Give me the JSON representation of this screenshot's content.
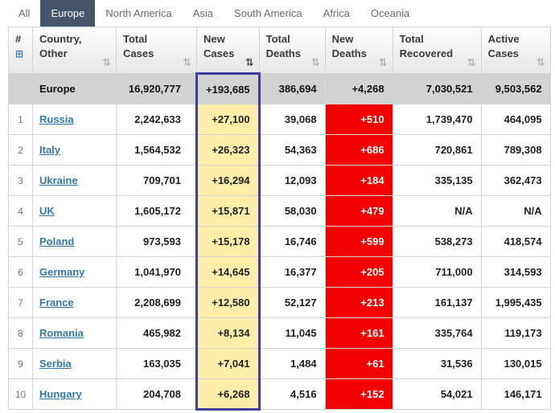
{
  "tabs": [
    {
      "label": "All",
      "active": false
    },
    {
      "label": "Europe",
      "active": true
    },
    {
      "label": "North America",
      "active": false
    },
    {
      "label": "Asia",
      "active": false
    },
    {
      "label": "South America",
      "active": false
    },
    {
      "label": "Africa",
      "active": false
    },
    {
      "label": "Oceania",
      "active": false
    }
  ],
  "icons": {
    "sort": "⇅",
    "grid": "⊞"
  },
  "colors": {
    "tab-active-bg": "#44566b",
    "link-color": "#3379a9",
    "new-cases-bg": "#ffeeaa",
    "new-deaths-bg": "#f20000",
    "highlight-border": "#3b3f99",
    "totals-row-bg": "#d2d2d2"
  },
  "table": {
    "columns": [
      {
        "id": "rank",
        "lines": [
          "#"
        ],
        "sortable": false
      },
      {
        "id": "country",
        "lines": [
          "Country,",
          "Other"
        ],
        "sortable": true
      },
      {
        "id": "total_cases",
        "lines": [
          "Total",
          "Cases"
        ],
        "sortable": true
      },
      {
        "id": "new_cases",
        "lines": [
          "New",
          "Cases"
        ],
        "sortable": true,
        "sort_active": true
      },
      {
        "id": "total_deaths",
        "lines": [
          "Total",
          "Deaths"
        ],
        "sortable": true
      },
      {
        "id": "new_deaths",
        "lines": [
          "New",
          "Deaths"
        ],
        "sortable": true
      },
      {
        "id": "total_recovered",
        "lines": [
          "Total",
          "Recovered"
        ],
        "sortable": true
      },
      {
        "id": "active_cases",
        "lines": [
          "Active",
          "Cases"
        ],
        "sortable": true
      }
    ],
    "totals_row": {
      "rank": "",
      "country": "Europe",
      "total_cases": "16,920,777",
      "new_cases": "+193,685",
      "total_deaths": "386,694",
      "new_deaths": "+4,268",
      "total_recovered": "7,030,521",
      "active_cases": "9,503,562"
    },
    "rows": [
      {
        "rank": "1",
        "country": "Russia",
        "total_cases": "2,242,633",
        "new_cases": "+27,100",
        "total_deaths": "39,068",
        "new_deaths": "+510",
        "total_recovered": "1,739,470",
        "active_cases": "464,095"
      },
      {
        "rank": "2",
        "country": "Italy",
        "total_cases": "1,564,532",
        "new_cases": "+26,323",
        "total_deaths": "54,363",
        "new_deaths": "+686",
        "total_recovered": "720,861",
        "active_cases": "789,308"
      },
      {
        "rank": "3",
        "country": "Ukraine",
        "total_cases": "709,701",
        "new_cases": "+16,294",
        "total_deaths": "12,093",
        "new_deaths": "+184",
        "total_recovered": "335,135",
        "active_cases": "362,473"
      },
      {
        "rank": "4",
        "country": "UK",
        "total_cases": "1,605,172",
        "new_cases": "+15,871",
        "total_deaths": "58,030",
        "new_deaths": "+479",
        "total_recovered": "N/A",
        "active_cases": "N/A"
      },
      {
        "rank": "5",
        "country": "Poland",
        "total_cases": "973,593",
        "new_cases": "+15,178",
        "total_deaths": "16,746",
        "new_deaths": "+599",
        "total_recovered": "538,273",
        "active_cases": "418,574"
      },
      {
        "rank": "6",
        "country": "Germany",
        "total_cases": "1,041,970",
        "new_cases": "+14,645",
        "total_deaths": "16,377",
        "new_deaths": "+205",
        "total_recovered": "711,000",
        "active_cases": "314,593"
      },
      {
        "rank": "7",
        "country": "France",
        "total_cases": "2,208,699",
        "new_cases": "+12,580",
        "total_deaths": "52,127",
        "new_deaths": "+213",
        "total_recovered": "161,137",
        "active_cases": "1,995,435"
      },
      {
        "rank": "8",
        "country": "Romania",
        "total_cases": "465,982",
        "new_cases": "+8,134",
        "total_deaths": "11,045",
        "new_deaths": "+161",
        "total_recovered": "335,764",
        "active_cases": "119,173"
      },
      {
        "rank": "9",
        "country": "Serbia",
        "total_cases": "163,035",
        "new_cases": "+7,041",
        "total_deaths": "1,484",
        "new_deaths": "+61",
        "total_recovered": "31,536",
        "active_cases": "130,015"
      },
      {
        "rank": "10",
        "country": "Hungary",
        "total_cases": "204,708",
        "new_cases": "+6,268",
        "total_deaths": "4,516",
        "new_deaths": "+152",
        "total_recovered": "54,021",
        "active_cases": "146,171"
      }
    ]
  }
}
